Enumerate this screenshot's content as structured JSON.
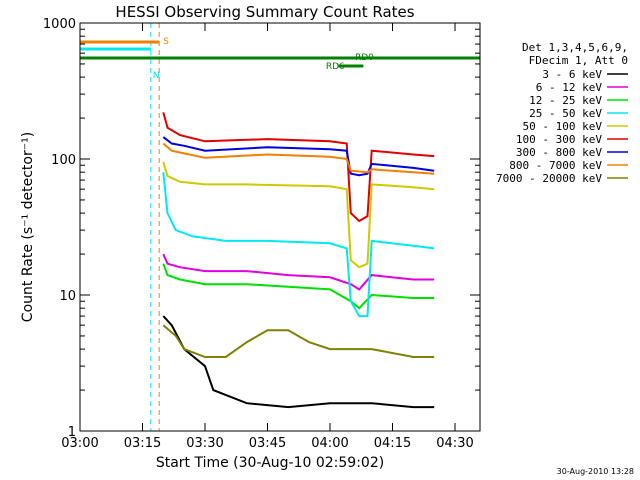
{
  "chart_data": {
    "type": "line",
    "title": "HESSI Observing Summary Count Rates",
    "xlabel": "Start Time (30-Aug-10 02:59:02)",
    "ylabel": "Count Rate (s⁻¹ detector⁻¹)",
    "yscale": "log",
    "ylim": [
      1,
      1000
    ],
    "xlim": [
      "03:00",
      "04:36"
    ],
    "x_ticks": [
      "03:00",
      "03:15",
      "03:30",
      "03:45",
      "04:00",
      "04:15",
      "04:30"
    ],
    "y_ticks": [
      "1",
      "10",
      "100",
      "1000"
    ],
    "grid": false,
    "legend_position": "right",
    "legend_header": [
      "Det 1,3,4,5,6,9,",
      "FDecim 1, Att 0"
    ],
    "series": [
      {
        "name": "3 - 6 keV",
        "color": "#000000",
        "points": [
          [
            "03:20",
            7
          ],
          [
            "03:22",
            6
          ],
          [
            "03:25",
            4
          ],
          [
            "03:30",
            3
          ],
          [
            "03:32",
            2
          ],
          [
            "03:40",
            1.6
          ],
          [
            "03:50",
            1.5
          ],
          [
            "04:00",
            1.6
          ],
          [
            "04:10",
            1.6
          ],
          [
            "04:20",
            1.5
          ],
          [
            "04:25",
            1.5
          ]
        ]
      },
      {
        "name": "6 - 12 keV",
        "color": "#e000e0",
        "points": [
          [
            "03:20",
            20
          ],
          [
            "03:21",
            17
          ],
          [
            "03:24",
            16
          ],
          [
            "03:30",
            15
          ],
          [
            "03:40",
            15
          ],
          [
            "03:50",
            14
          ],
          [
            "04:00",
            13.5
          ],
          [
            "04:05",
            12
          ],
          [
            "04:07",
            11
          ],
          [
            "04:10",
            14
          ],
          [
            "04:20",
            13
          ],
          [
            "04:25",
            13
          ]
        ]
      },
      {
        "name": "12 - 25 keV",
        "color": "#00e000",
        "points": [
          [
            "03:20",
            17
          ],
          [
            "03:21",
            14
          ],
          [
            "03:24",
            13
          ],
          [
            "03:30",
            12
          ],
          [
            "03:40",
            12
          ],
          [
            "03:50",
            11.5
          ],
          [
            "04:00",
            11
          ],
          [
            "04:05",
            9
          ],
          [
            "04:07",
            8
          ],
          [
            "04:10",
            10
          ],
          [
            "04:20",
            9.5
          ],
          [
            "04:25",
            9.5
          ]
        ]
      },
      {
        "name": "25 - 50 keV",
        "color": "#00e8f0",
        "points": [
          [
            "03:20",
            80
          ],
          [
            "03:21",
            40
          ],
          [
            "03:23",
            30
          ],
          [
            "03:27",
            27
          ],
          [
            "03:35",
            25
          ],
          [
            "03:45",
            25
          ],
          [
            "04:00",
            24
          ],
          [
            "04:04",
            22
          ],
          [
            "04:05",
            9
          ],
          [
            "04:07",
            7
          ],
          [
            "04:09",
            7
          ],
          [
            "04:10",
            25
          ],
          [
            "04:20",
            23
          ],
          [
            "04:25",
            22
          ]
        ]
      },
      {
        "name": "50 - 100 keV",
        "color": "#d0c800",
        "points": [
          [
            "03:20",
            95
          ],
          [
            "03:21",
            75
          ],
          [
            "03:24",
            68
          ],
          [
            "03:30",
            65
          ],
          [
            "03:40",
            65
          ],
          [
            "03:50",
            64
          ],
          [
            "04:00",
            63
          ],
          [
            "04:04",
            60
          ],
          [
            "04:05",
            18
          ],
          [
            "04:07",
            16
          ],
          [
            "04:09",
            17
          ],
          [
            "04:10",
            65
          ],
          [
            "04:20",
            62
          ],
          [
            "04:25",
            60
          ]
        ]
      },
      {
        "name": "100 - 300 keV",
        "color": "#e00000",
        "points": [
          [
            "03:20",
            220
          ],
          [
            "03:21",
            170
          ],
          [
            "03:24",
            150
          ],
          [
            "03:30",
            135
          ],
          [
            "03:45",
            140
          ],
          [
            "04:00",
            135
          ],
          [
            "04:04",
            130
          ],
          [
            "04:05",
            40
          ],
          [
            "04:07",
            35
          ],
          [
            "04:09",
            38
          ],
          [
            "04:10",
            115
          ],
          [
            "04:20",
            108
          ],
          [
            "04:25",
            105
          ]
        ]
      },
      {
        "name": "300 - 800 keV",
        "color": "#0000e0",
        "points": [
          [
            "03:20",
            145
          ],
          [
            "03:22",
            130
          ],
          [
            "03:25",
            125
          ],
          [
            "03:30",
            115
          ],
          [
            "03:45",
            122
          ],
          [
            "04:00",
            118
          ],
          [
            "04:04",
            115
          ],
          [
            "04:05",
            78
          ],
          [
            "04:07",
            76
          ],
          [
            "04:09",
            78
          ],
          [
            "04:10",
            92
          ],
          [
            "04:20",
            86
          ],
          [
            "04:25",
            82
          ]
        ]
      },
      {
        "name": "800 - 7000 keV",
        "color": "#f08000",
        "points": [
          [
            "03:20",
            130
          ],
          [
            "03:22",
            115
          ],
          [
            "03:25",
            110
          ],
          [
            "03:30",
            102
          ],
          [
            "03:45",
            108
          ],
          [
            "04:00",
            104
          ],
          [
            "04:04",
            100
          ],
          [
            "04:05",
            82
          ],
          [
            "04:09",
            80
          ],
          [
            "04:10",
            84
          ],
          [
            "04:20",
            80
          ],
          [
            "04:25",
            78
          ]
        ]
      },
      {
        "name": "7000 - 20000 keV",
        "color": "#808000",
        "points": [
          [
            "03:20",
            6
          ],
          [
            "03:23",
            5
          ],
          [
            "03:25",
            4
          ],
          [
            "03:30",
            3.5
          ],
          [
            "03:35",
            3.5
          ],
          [
            "03:40",
            4.5
          ],
          [
            "03:45",
            5.5
          ],
          [
            "03:50",
            5.5
          ],
          [
            "03:55",
            4.5
          ],
          [
            "04:00",
            4
          ],
          [
            "04:05",
            4
          ],
          [
            "04:10",
            4
          ],
          [
            "04:20",
            3.5
          ],
          [
            "04:25",
            3.5
          ]
        ]
      }
    ],
    "flags": [
      {
        "label": "S",
        "color": "#f08000"
      },
      {
        "label": "N",
        "color": "#00e8f0"
      },
      {
        "label": "RD0",
        "color": "#008000"
      },
      {
        "label": "RD6",
        "color": "#008000"
      }
    ]
  },
  "timestamp": "30-Aug-2010 13:28"
}
